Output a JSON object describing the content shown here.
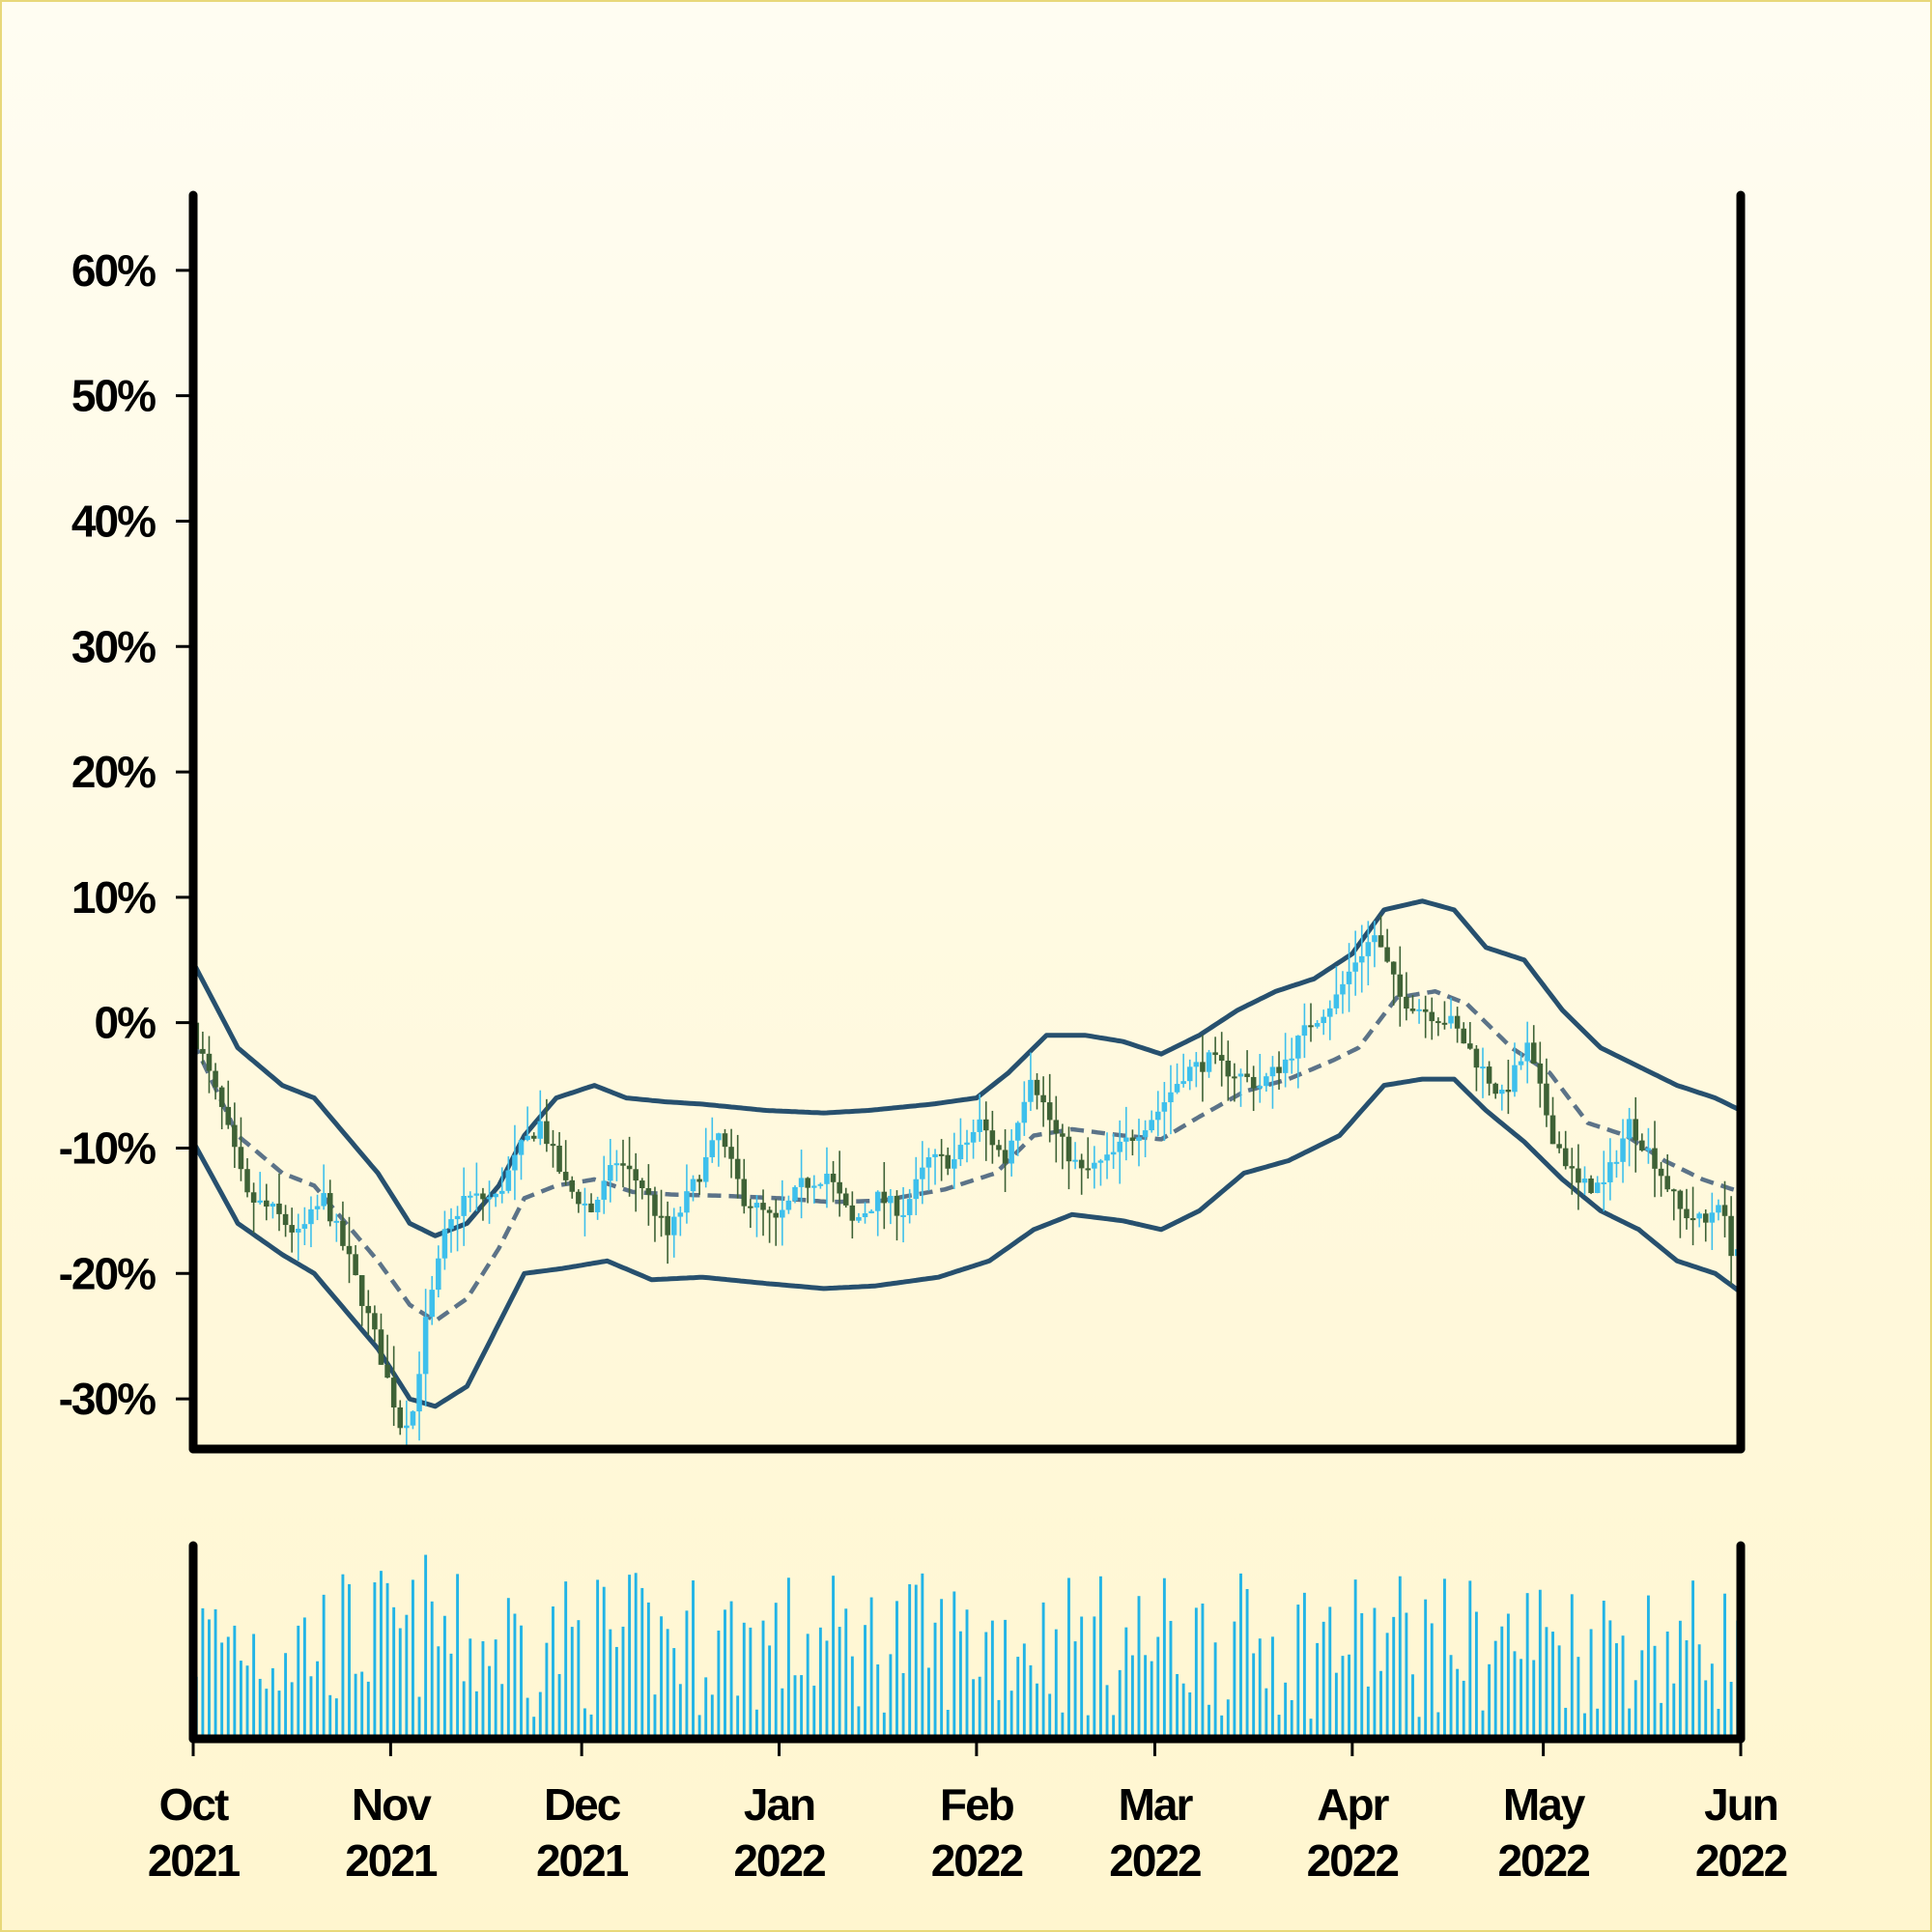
{
  "chart_data": {
    "type": "candlestick",
    "title": "",
    "xlabel": "",
    "ylabel": "",
    "xlim": [
      "2021-10-01",
      "2022-06-01"
    ],
    "ylim": [
      -34,
      66
    ],
    "y_ticks": [
      -30,
      -20,
      -10,
      0,
      10,
      20,
      30,
      40,
      50,
      60
    ],
    "y_tick_labels": [
      "-30%",
      "-20%",
      "-10%",
      "0%",
      "10%",
      "20%",
      "30%",
      "40%",
      "50%",
      "60%"
    ],
    "x_ticks": [
      "2021-10-01",
      "2021-11-01",
      "2021-12-01",
      "2022-01-01",
      "2022-02-01",
      "2022-03-01",
      "2022-04-01",
      "2022-05-01",
      "2022-06-01"
    ],
    "x_tick_labels": [
      [
        "Oct",
        "2021"
      ],
      [
        "Nov",
        "2021"
      ],
      [
        "Dec",
        "2021"
      ],
      [
        "Jan",
        "2022"
      ],
      [
        "Feb",
        "2022"
      ],
      [
        "Mar",
        "2022"
      ],
      [
        "Apr",
        "2022"
      ],
      [
        "May",
        "2022"
      ],
      [
        "Jun",
        "2022"
      ]
    ],
    "grid": false,
    "colors": {
      "up": "#3ec0ec",
      "down": "#3e6236",
      "band": "#27506e",
      "middle": "#5c7388",
      "volume": "#22b4e6",
      "background_top": "#fffdf2",
      "background_bottom": "#fff6cf",
      "frame": "#000000"
    },
    "close_anchors": [
      [
        "2021-10-01",
        0
      ],
      [
        "2021-10-06",
        -7
      ],
      [
        "2021-10-10",
        -14
      ],
      [
        "2021-10-14",
        -15
      ],
      [
        "2021-10-18",
        -17
      ],
      [
        "2021-10-22",
        -14
      ],
      [
        "2021-10-26",
        -19
      ],
      [
        "2021-10-30",
        -25
      ],
      [
        "2021-11-03",
        -32
      ],
      [
        "2021-11-05",
        -31
      ],
      [
        "2021-11-07",
        -24
      ],
      [
        "2021-11-10",
        -17
      ],
      [
        "2021-11-13",
        -14
      ],
      [
        "2021-11-18",
        -14
      ],
      [
        "2021-11-22",
        -10
      ],
      [
        "2021-11-25",
        -8
      ],
      [
        "2021-11-29",
        -13
      ],
      [
        "2021-12-03",
        -15
      ],
      [
        "2021-12-07",
        -11
      ],
      [
        "2021-12-11",
        -13
      ],
      [
        "2021-12-15",
        -17
      ],
      [
        "2021-12-19",
        -13
      ],
      [
        "2021-12-23",
        -9
      ],
      [
        "2021-12-27",
        -14
      ],
      [
        "2022-01-01",
        -16
      ],
      [
        "2022-01-05",
        -13
      ],
      [
        "2022-01-09",
        -12
      ],
      [
        "2022-01-13",
        -16
      ],
      [
        "2022-01-17",
        -14
      ],
      [
        "2022-01-21",
        -15
      ],
      [
        "2022-01-25",
        -11
      ],
      [
        "2022-01-29",
        -11
      ],
      [
        "2022-02-02",
        -8
      ],
      [
        "2022-02-06",
        -11
      ],
      [
        "2022-02-10",
        -4
      ],
      [
        "2022-02-14",
        -9
      ],
      [
        "2022-02-18",
        -12
      ],
      [
        "2022-02-22",
        -11
      ],
      [
        "2022-02-26",
        -9
      ],
      [
        "2022-03-02",
        -7
      ],
      [
        "2022-03-06",
        -4
      ],
      [
        "2022-03-10",
        -3
      ],
      [
        "2022-03-14",
        -4
      ],
      [
        "2022-03-18",
        -5
      ],
      [
        "2022-03-22",
        -3
      ],
      [
        "2022-03-26",
        0
      ],
      [
        "2022-03-30",
        2
      ],
      [
        "2022-04-02",
        5
      ],
      [
        "2022-04-05",
        7
      ],
      [
        "2022-04-09",
        2
      ],
      [
        "2022-04-13",
        1
      ],
      [
        "2022-04-17",
        0
      ],
      [
        "2022-04-21",
        -3
      ],
      [
        "2022-04-25",
        -6
      ],
      [
        "2022-04-29",
        -2
      ],
      [
        "2022-05-03",
        -9
      ],
      [
        "2022-05-07",
        -13
      ],
      [
        "2022-05-11",
        -13
      ],
      [
        "2022-05-15",
        -8
      ],
      [
        "2022-05-19",
        -11
      ],
      [
        "2022-05-23",
        -15
      ],
      [
        "2022-05-27",
        -16
      ],
      [
        "2022-05-29",
        -14
      ],
      [
        "2022-05-31",
        -18
      ]
    ],
    "band_upper": [
      [
        "2021-10-01",
        4.8
      ],
      [
        "2021-10-08",
        -2
      ],
      [
        "2021-10-15",
        -5
      ],
      [
        "2021-10-20",
        -6
      ],
      [
        "2021-10-25",
        -9
      ],
      [
        "2021-10-30",
        -12
      ],
      [
        "2021-11-04",
        -16
      ],
      [
        "2021-11-08",
        -17
      ],
      [
        "2021-11-13",
        -16
      ],
      [
        "2021-11-18",
        -13
      ],
      [
        "2021-11-22",
        -9
      ],
      [
        "2021-11-27",
        -6
      ],
      [
        "2021-12-03",
        -5
      ],
      [
        "2021-12-08",
        -6
      ],
      [
        "2021-12-14",
        -6.3
      ],
      [
        "2021-12-20",
        -6.5
      ],
      [
        "2021-12-30",
        -7
      ],
      [
        "2022-01-08",
        -7.2
      ],
      [
        "2022-01-15",
        -7
      ],
      [
        "2022-01-25",
        -6.5
      ],
      [
        "2022-02-01",
        -6
      ],
      [
        "2022-02-06",
        -4
      ],
      [
        "2022-02-12",
        -1
      ],
      [
        "2022-02-18",
        -1
      ],
      [
        "2022-02-24",
        -1.5
      ],
      [
        "2022-03-02",
        -2.5
      ],
      [
        "2022-03-08",
        -1
      ],
      [
        "2022-03-14",
        1
      ],
      [
        "2022-03-20",
        2.5
      ],
      [
        "2022-03-26",
        3.5
      ],
      [
        "2022-04-01",
        5.5
      ],
      [
        "2022-04-06",
        9
      ],
      [
        "2022-04-12",
        9.7
      ],
      [
        "2022-04-17",
        9
      ],
      [
        "2022-04-22",
        6
      ],
      [
        "2022-04-28",
        5
      ],
      [
        "2022-05-04",
        1
      ],
      [
        "2022-05-10",
        -2
      ],
      [
        "2022-05-16",
        -3.5
      ],
      [
        "2022-05-22",
        -5
      ],
      [
        "2022-05-28",
        -6
      ],
      [
        "2022-06-01",
        -7
      ]
    ],
    "band_middle": [
      [
        "2021-10-01",
        -1.5
      ],
      [
        "2021-10-08",
        -9
      ],
      [
        "2021-10-15",
        -12
      ],
      [
        "2021-10-20",
        -13
      ],
      [
        "2021-10-25",
        -16
      ],
      [
        "2021-10-30",
        -19
      ],
      [
        "2021-11-04",
        -22.5
      ],
      [
        "2021-11-08",
        -23.8
      ],
      [
        "2021-11-13",
        -22
      ],
      [
        "2021-11-18",
        -18
      ],
      [
        "2021-11-22",
        -14
      ],
      [
        "2021-11-27",
        -13
      ],
      [
        "2021-12-03",
        -12.5
      ],
      [
        "2021-12-09",
        -13.5
      ],
      [
        "2021-12-15",
        -13.7
      ],
      [
        "2021-12-23",
        -13.8
      ],
      [
        "2022-01-01",
        -14
      ],
      [
        "2022-01-09",
        -14.3
      ],
      [
        "2022-01-17",
        -14.2
      ],
      [
        "2022-01-27",
        -13.3
      ],
      [
        "2022-02-04",
        -12
      ],
      [
        "2022-02-10",
        -9
      ],
      [
        "2022-02-16",
        -8.5
      ],
      [
        "2022-02-24",
        -9
      ],
      [
        "2022-03-02",
        -9.3
      ],
      [
        "2022-03-08",
        -7.5
      ],
      [
        "2022-03-15",
        -5.5
      ],
      [
        "2022-03-22",
        -4.5
      ],
      [
        "2022-03-29",
        -3
      ],
      [
        "2022-04-02",
        -2
      ],
      [
        "2022-04-08",
        2
      ],
      [
        "2022-04-14",
        2.5
      ],
      [
        "2022-04-19",
        1.5
      ],
      [
        "2022-04-26",
        -2
      ],
      [
        "2022-05-02",
        -4
      ],
      [
        "2022-05-08",
        -8
      ],
      [
        "2022-05-14",
        -9
      ],
      [
        "2022-05-20",
        -11
      ],
      [
        "2022-05-26",
        -12.5
      ],
      [
        "2022-06-01",
        -13.5
      ]
    ],
    "band_lower": [
      [
        "2021-10-01",
        -9.5
      ],
      [
        "2021-10-08",
        -16
      ],
      [
        "2021-10-15",
        -18.5
      ],
      [
        "2021-10-20",
        -20
      ],
      [
        "2021-10-25",
        -23
      ],
      [
        "2021-10-30",
        -26
      ],
      [
        "2021-11-04",
        -30
      ],
      [
        "2021-11-08",
        -30.6
      ],
      [
        "2021-11-13",
        -29
      ],
      [
        "2021-11-17",
        -25
      ],
      [
        "2021-11-22",
        -20
      ],
      [
        "2021-11-28",
        -19.6
      ],
      [
        "2021-12-05",
        -19
      ],
      [
        "2021-12-12",
        -20.5
      ],
      [
        "2021-12-20",
        -20.3
      ],
      [
        "2021-12-30",
        -20.8
      ],
      [
        "2022-01-08",
        -21.2
      ],
      [
        "2022-01-16",
        -21
      ],
      [
        "2022-01-26",
        -20.3
      ],
      [
        "2022-02-03",
        -19
      ],
      [
        "2022-02-10",
        -16.5
      ],
      [
        "2022-02-16",
        -15.3
      ],
      [
        "2022-02-24",
        -15.8
      ],
      [
        "2022-03-02",
        -16.5
      ],
      [
        "2022-03-08",
        -15
      ],
      [
        "2022-03-15",
        -12
      ],
      [
        "2022-03-22",
        -11
      ],
      [
        "2022-03-30",
        -9
      ],
      [
        "2022-04-06",
        -5
      ],
      [
        "2022-04-12",
        -4.5
      ],
      [
        "2022-04-17",
        -4.5
      ],
      [
        "2022-04-22",
        -7
      ],
      [
        "2022-04-28",
        -9.5
      ],
      [
        "2022-05-04",
        -12.5
      ],
      [
        "2022-05-10",
        -15
      ],
      [
        "2022-05-16",
        -16.5
      ],
      [
        "2022-05-22",
        -19
      ],
      [
        "2022-05-28",
        -20
      ],
      [
        "2022-06-01",
        -21.5
      ]
    ]
  }
}
